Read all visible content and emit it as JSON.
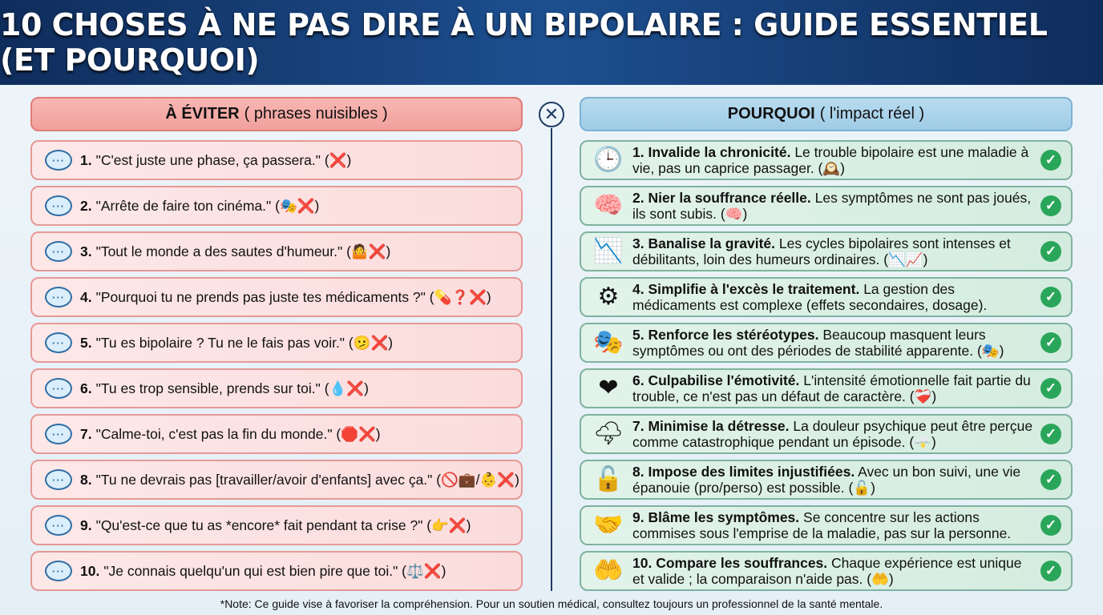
{
  "title": "10 CHOSES À NE PAS DIRE À UN BIPOLAIRE : GUIDE ESSENTIEL (ET POURQUOI)",
  "left_header": {
    "bold": "À ÉVITER",
    "rest": "( phrases nuisibles )"
  },
  "right_header": {
    "bold": "POURQUOI",
    "rest": "( l'impact réel )"
  },
  "divider_icon": "close-circle-icon",
  "avoid": [
    {
      "num": "1.",
      "text": "\"C'est juste une phase, ça passera.\" (❌)"
    },
    {
      "num": "2.",
      "text": "\"Arrête de faire ton cinéma.\" (🎭❌)"
    },
    {
      "num": "3.",
      "text": "\"Tout le monde a des sautes d'humeur.\" (🤷❌)"
    },
    {
      "num": "4.",
      "text": "\"Pourquoi tu ne prends pas juste tes médicaments ?\" (💊❓❌)"
    },
    {
      "num": "5.",
      "text": "\"Tu es bipolaire ? Tu ne le fais pas voir.\" (🫤❌)"
    },
    {
      "num": "6.",
      "text": "\"Tu es trop sensible, prends sur toi.\" (💧❌)"
    },
    {
      "num": "7.",
      "text": "\"Calme-toi, c'est pas la fin du monde.\" (🛑❌)"
    },
    {
      "num": "8.",
      "text": "\"Tu ne devrais pas [travailler/avoir d'enfants] avec ça.\" (🚫💼/👶❌)"
    },
    {
      "num": "9.",
      "text": "\"Qu'est-ce que tu as *encore* fait pendant ta crise ?\" (👉❌)"
    },
    {
      "num": "10.",
      "text": "\"Je connais quelqu'un qui est bien pire que toi.\" (⚖️❌)"
    }
  ],
  "why": [
    {
      "icon": "🕒",
      "icon_name": "clock-icon",
      "title": "1. Invalide la chronicité.",
      "text": "Le trouble bipolaire est une maladie à vie, pas un caprice passager. (🕰️)"
    },
    {
      "icon": "🧠",
      "icon_name": "brain-icon",
      "title": "2. Nier la souffrance réelle.",
      "text": "Les symptômes ne sont pas joués, ils sont subis. (🧠)"
    },
    {
      "icon": "📉",
      "icon_name": "chart-down-icon",
      "title": "3. Banalise la gravité.",
      "text": "Les cycles bipolaires sont intenses et débilitants, loin des humeurs ordinaires. (📉📈)"
    },
    {
      "icon": "⚙",
      "icon_name": "gear-icon",
      "title": "4. Simplifie à l'excès le traitement.",
      "text": "La gestion des médicaments est complexe (effets secondaires, dosage)."
    },
    {
      "icon": "🎭",
      "icon_name": "theater-masks-icon",
      "title": "5. Renforce les stéréotypes.",
      "text": "Beaucoup masquent leurs symptômes ou ont des périodes de stabilité apparente. (🎭)"
    },
    {
      "icon": "❤",
      "icon_name": "heart-icon",
      "title": "6. Culpabilise l'émotivité.",
      "text": "L'intensité émotionnelle fait partie du trouble, ce n'est pas un défaut de caractère. (❤️‍🩹)"
    },
    {
      "icon": "🌩",
      "icon_name": "storm-cloud-icon",
      "title": "7. Minimise la détresse.",
      "text": "La douleur psychique peut être perçue comme catastrophique pendant un épisode. (🌩️)"
    },
    {
      "icon": "🔓",
      "icon_name": "unlock-icon",
      "title": "8. Impose des limites injustifiées.",
      "text": "Avec un bon suivi, une vie épanouie (pro/perso) est possible. (🔓)"
    },
    {
      "icon": "🤝",
      "icon_name": "handshake-icon",
      "title": "9. Blâme les symptômes.",
      "text": "Se concentre sur les actions commises sous l'emprise de la maladie, pas sur la personne."
    },
    {
      "icon": "🤲",
      "icon_name": "open-hands-icon",
      "title": "10. Compare les souffrances.",
      "text": "Chaque expérience est unique et valide ; la comparaison n'aide pas. (🤲)"
    }
  ],
  "footer": "*Note: Ce guide vise à favoriser la compréhension. Pour un soutien médical, consultez toujours un professionnel de la santé mentale.",
  "colors": {
    "banner": "#1d4f8f",
    "avoid": "#f1a09c",
    "why": "#9fcbe6",
    "check": "#2aa65a"
  }
}
